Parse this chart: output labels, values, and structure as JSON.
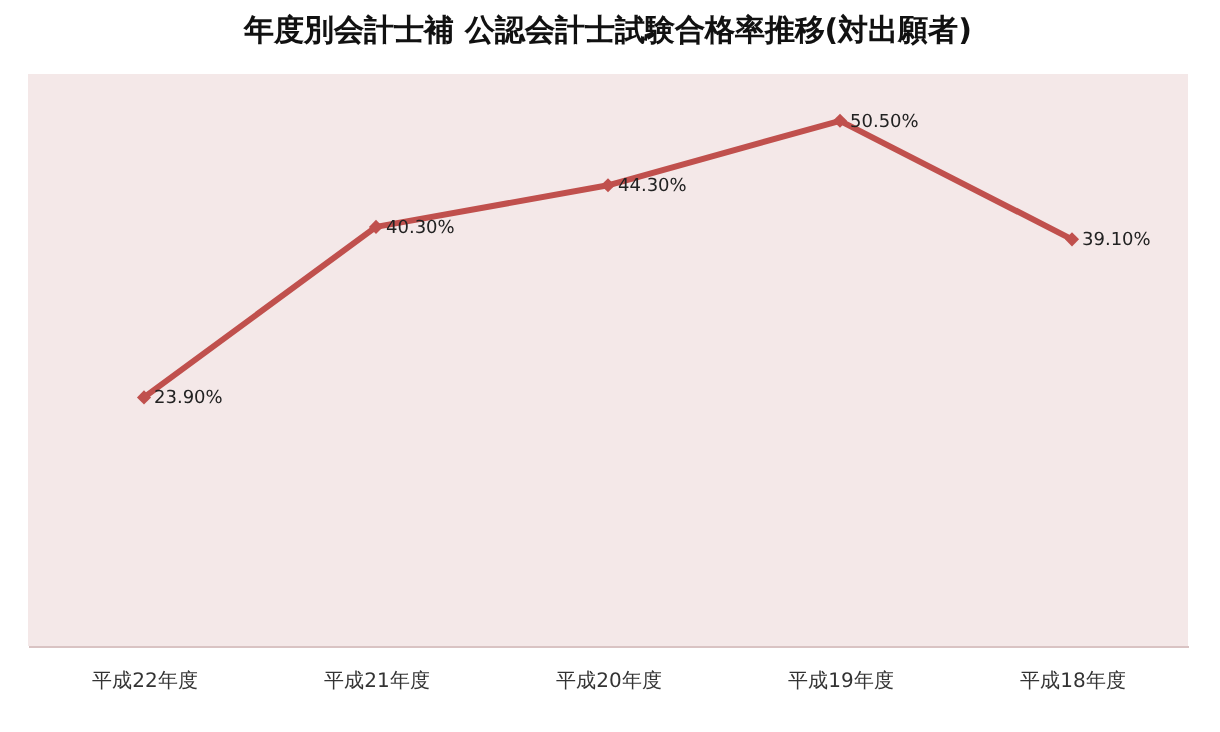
{
  "chart_data": {
    "type": "line",
    "title": "年度別会計士補  公認会計士試験合格率推移(対出願者)",
    "categories": [
      "平成22年度",
      "平成21年度",
      "平成20年度",
      "平成19年度",
      "平成18年度"
    ],
    "series": [
      {
        "color": "#c0504d",
        "values": [
          23.9,
          40.3,
          44.3,
          50.5,
          39.1
        ],
        "value_labels": [
          "23.90%",
          "40.30%",
          "44.30%",
          "50.50%",
          "39.10%"
        ]
      }
    ],
    "marker": "diamond",
    "grid": false,
    "legend": false
  }
}
